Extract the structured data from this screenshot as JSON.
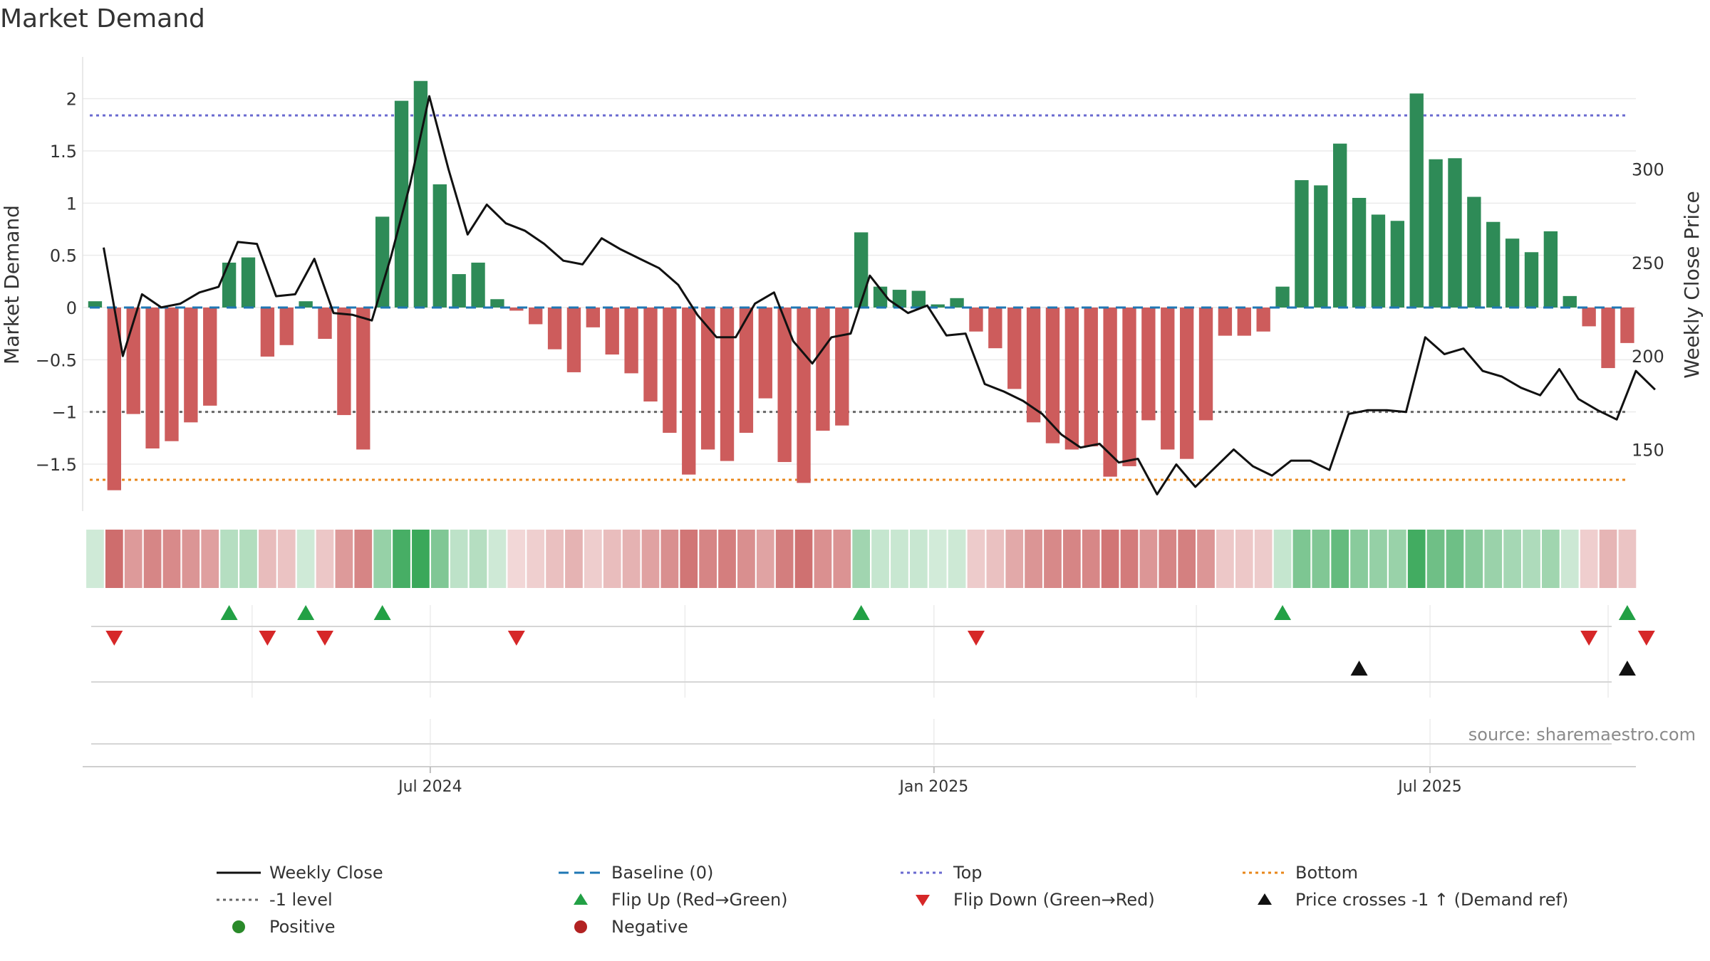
{
  "title": "Market Demand",
  "source_note": "source: sharemaestro.com",
  "colors": {
    "positive": "#2e8b57",
    "negative": "#cd5c5c",
    "close": "#111111",
    "baseline": "#1f77b4",
    "top": "#6a6ad0",
    "bottom": "#e8861a",
    "minus1": "#666666",
    "flip_up": "#22a045",
    "flip_down": "#d62728"
  },
  "chart_data": {
    "type": "bar",
    "title": "Market Demand",
    "ylabel": "Market Demand",
    "y2label": "Weekly Close Price",
    "ylim": [
      -1.95,
      2.4
    ],
    "y2lim": [
      117,
      360
    ],
    "yticks": [
      2,
      1.5,
      1,
      0.5,
      0,
      -0.5,
      -1,
      -1.5
    ],
    "yticklabels": [
      "2",
      "1.5",
      "1",
      "0.5",
      "0",
      "−0.5",
      "−1",
      "−1.5"
    ],
    "y2ticks": [
      300,
      250,
      200,
      150
    ],
    "y2ticklabels": [
      "300",
      "250",
      "200",
      "150"
    ],
    "xticks": [
      17.5,
      43.8,
      69.7
    ],
    "xticklabels": [
      "Jul 2024",
      "Jan 2025",
      "Jul 2025"
    ],
    "reference_lines": {
      "baseline": 0,
      "top": 1.84,
      "bottom": -1.65,
      "minus1": -1.0
    },
    "demand": [
      0.06,
      -1.75,
      -1.02,
      -1.35,
      -1.28,
      -1.1,
      -0.94,
      0.43,
      0.48,
      -0.47,
      -0.36,
      0.06,
      -0.3,
      -1.03,
      -1.36,
      0.87,
      1.98,
      2.17,
      1.18,
      0.32,
      0.43,
      0.08,
      -0.03,
      -0.16,
      -0.4,
      -0.62,
      -0.19,
      -0.45,
      -0.63,
      -0.9,
      -1.2,
      -1.6,
      -1.36,
      -1.47,
      -1.2,
      -0.87,
      -1.48,
      -1.68,
      -1.18,
      -1.13,
      0.72,
      0.2,
      0.17,
      0.16,
      0.03,
      0.09,
      -0.23,
      -0.39,
      -0.78,
      -1.1,
      -1.3,
      -1.36,
      -1.33,
      -1.62,
      -1.52,
      -1.08,
      -1.36,
      -1.45,
      -1.08,
      -0.27,
      -0.27,
      -0.23,
      0.2,
      1.22,
      1.17,
      1.57,
      1.05,
      0.89,
      0.83,
      2.05,
      1.42,
      1.43,
      1.06,
      0.82,
      0.66,
      0.53,
      0.73,
      0.11,
      -0.18,
      -0.58,
      -0.34
    ],
    "weekly_close": [
      258,
      200,
      233,
      226,
      228,
      234,
      237,
      261,
      260,
      232,
      233,
      252,
      223,
      222,
      219,
      253,
      292,
      339,
      300,
      265,
      281,
      271,
      267,
      260,
      251,
      249,
      263,
      257,
      252,
      247,
      238,
      222,
      210,
      210,
      228,
      234,
      208,
      196,
      210,
      212,
      243,
      230,
      223,
      227,
      211,
      212,
      185,
      181,
      176,
      169,
      158,
      151,
      153,
      143,
      145,
      126,
      142,
      130,
      140,
      150,
      141,
      136,
      144,
      144,
      139,
      169,
      171,
      171,
      170,
      210,
      201,
      204,
      192,
      189,
      183,
      179,
      193,
      177,
      171,
      166,
      192,
      182
    ],
    "weekly_close_x_offset": 0.45,
    "color_strip_intensity": "derived from demand",
    "flip_up_weeks": [
      7,
      11,
      15,
      40,
      62,
      80
    ],
    "flip_down_weeks": [
      1,
      9,
      12,
      22,
      46,
      78,
      81
    ],
    "price_cross_up_weeks": [
      66,
      80
    ],
    "series": [
      {
        "name": "Weekly Close",
        "kind": "line"
      },
      {
        "name": "Baseline (0)",
        "kind": "dashed"
      },
      {
        "name": "Top",
        "kind": "dotted"
      },
      {
        "name": "Bottom",
        "kind": "dotted"
      },
      {
        "name": "-1 level",
        "kind": "dotted"
      },
      {
        "name": "Flip Up (Red→Green)",
        "kind": "marker-up"
      },
      {
        "name": "Flip Down (Green→Red)",
        "kind": "marker-down"
      },
      {
        "name": "Price crosses -1 ↑ (Demand ref)",
        "kind": "marker-up-black"
      },
      {
        "name": "Positive",
        "kind": "dot"
      },
      {
        "name": "Negative",
        "kind": "dot"
      }
    ]
  },
  "legend": {
    "weekly_close": "Weekly Close",
    "baseline": "Baseline (0)",
    "top": "Top",
    "bottom": "Bottom",
    "minus1": "-1 level",
    "flip_up": "Flip Up (Red→Green)",
    "flip_down": "Flip Down (Green→Red)",
    "price_cross": "Price crosses -1 ↑ (Demand ref)",
    "positive": "Positive",
    "negative": "Negative"
  }
}
